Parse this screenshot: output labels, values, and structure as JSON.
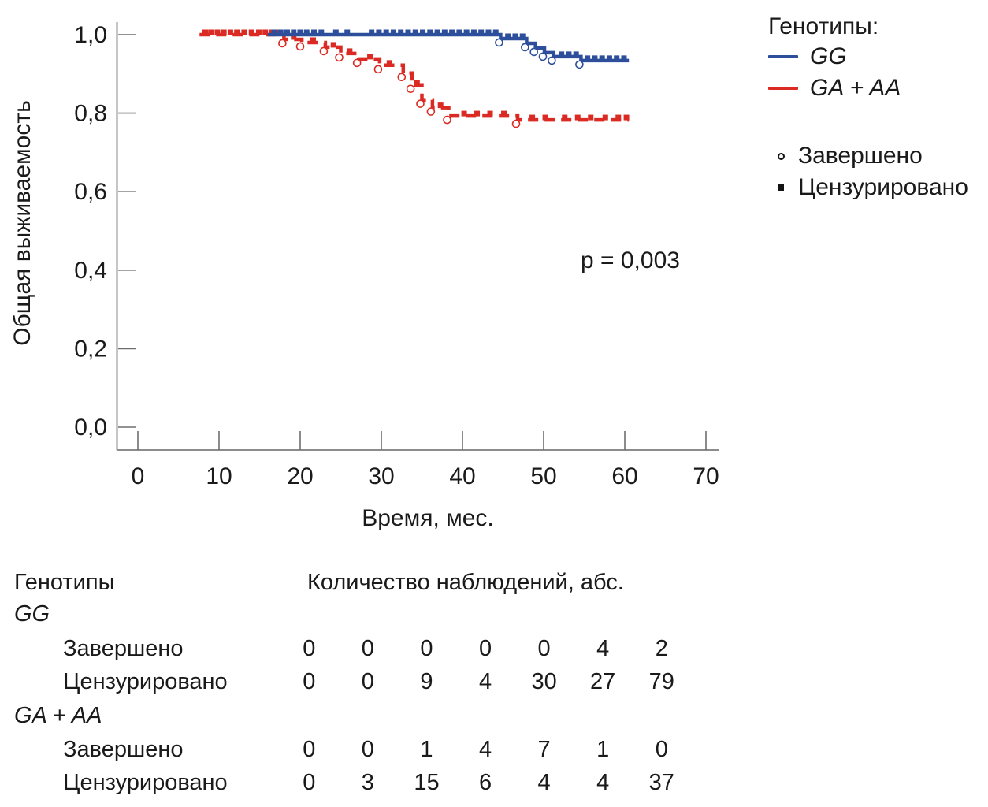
{
  "chart_data": {
    "type": "line",
    "variant": "kaplan_meier_step_survival",
    "title": "",
    "xlabel": "Время, мес.",
    "ylabel": "Общая выживаемость",
    "xlim": [
      0,
      70
    ],
    "ylim": [
      0.0,
      1.0
    ],
    "grid": false,
    "legend_position": "right-outside",
    "annotation": "p = 0,003",
    "xticks": [
      {
        "value": 0,
        "label": "0"
      },
      {
        "value": 10,
        "label": "10"
      },
      {
        "value": 20,
        "label": "20"
      },
      {
        "value": 30,
        "label": "30"
      },
      {
        "value": 40,
        "label": "40"
      },
      {
        "value": 50,
        "label": "50"
      },
      {
        "value": 60,
        "label": "60"
      },
      {
        "value": 70,
        "label": "70"
      }
    ],
    "yticks": [
      {
        "value": 0.0,
        "label": "0,0"
      },
      {
        "value": 0.2,
        "label": "0,2"
      },
      {
        "value": 0.4,
        "label": "0,4"
      },
      {
        "value": 0.6,
        "label": "0,6"
      },
      {
        "value": 0.8,
        "label": "0,8"
      },
      {
        "value": 1.0,
        "label": "1,0"
      }
    ],
    "series": [
      {
        "id": "gg",
        "name": "GG",
        "color": "#2d4e9b",
        "line_style": "solid",
        "steps": [
          [
            16.0,
            1.0
          ],
          [
            44.7,
            1.0
          ],
          [
            44.7,
            0.99
          ],
          [
            47.9,
            0.99
          ],
          [
            47.9,
            0.978
          ],
          [
            49.0,
            0.978
          ],
          [
            49.0,
            0.966
          ],
          [
            50.1,
            0.966
          ],
          [
            50.1,
            0.954
          ],
          [
            51.2,
            0.954
          ],
          [
            51.2,
            0.944
          ],
          [
            54.6,
            0.944
          ],
          [
            54.6,
            0.934
          ],
          [
            60.5,
            0.934
          ]
        ],
        "censored": [
          [
            16.8,
            1.0
          ],
          [
            17.6,
            1.0
          ],
          [
            18.4,
            1.0
          ],
          [
            19.2,
            1.0
          ],
          [
            20.0,
            1.0
          ],
          [
            20.8,
            1.0
          ],
          [
            21.7,
            1.0
          ],
          [
            22.6,
            1.0
          ],
          [
            24.4,
            1.0
          ],
          [
            25.8,
            1.0
          ],
          [
            28.8,
            1.0
          ],
          [
            29.7,
            1.0
          ],
          [
            30.6,
            1.0
          ],
          [
            31.5,
            1.0
          ],
          [
            32.4,
            1.0
          ],
          [
            33.3,
            1.0
          ],
          [
            34.2,
            1.0
          ],
          [
            35.1,
            1.0
          ],
          [
            36.0,
            1.0
          ],
          [
            36.9,
            1.0
          ],
          [
            37.8,
            1.0
          ],
          [
            38.7,
            1.0
          ],
          [
            39.6,
            1.0
          ],
          [
            40.5,
            1.0
          ],
          [
            41.4,
            1.0
          ],
          [
            42.3,
            1.0
          ],
          [
            43.2,
            1.0
          ],
          [
            44.1,
            1.0
          ],
          [
            45.6,
            0.99
          ],
          [
            46.5,
            0.99
          ],
          [
            47.4,
            0.99
          ],
          [
            52.2,
            0.944
          ],
          [
            53.1,
            0.944
          ],
          [
            54.0,
            0.944
          ],
          [
            55.4,
            0.934
          ],
          [
            56.3,
            0.934
          ],
          [
            57.2,
            0.934
          ],
          [
            58.1,
            0.934
          ],
          [
            59.0,
            0.934
          ],
          [
            59.9,
            0.934
          ]
        ],
        "events": [
          [
            44.7,
            0.99
          ],
          [
            47.9,
            0.978
          ],
          [
            49.0,
            0.966
          ],
          [
            50.1,
            0.954
          ],
          [
            51.2,
            0.944
          ],
          [
            54.6,
            0.934
          ]
        ]
      },
      {
        "id": "ga-aa",
        "name": "GA + AA",
        "color": "#da2a23",
        "line_style": "dashed",
        "steps": [
          [
            7.6,
            1.0
          ],
          [
            18.0,
            1.0
          ],
          [
            18.0,
            0.988
          ],
          [
            20.2,
            0.988
          ],
          [
            20.2,
            0.98
          ],
          [
            23.1,
            0.98
          ],
          [
            23.1,
            0.968
          ],
          [
            25.0,
            0.968
          ],
          [
            25.0,
            0.952
          ],
          [
            27.2,
            0.952
          ],
          [
            27.2,
            0.938
          ],
          [
            29.8,
            0.938
          ],
          [
            29.8,
            0.922
          ],
          [
            32.7,
            0.922
          ],
          [
            32.7,
            0.902
          ],
          [
            33.8,
            0.902
          ],
          [
            33.8,
            0.872
          ],
          [
            35.0,
            0.872
          ],
          [
            35.0,
            0.834
          ],
          [
            36.3,
            0.834
          ],
          [
            36.3,
            0.814
          ],
          [
            38.3,
            0.814
          ],
          [
            38.3,
            0.793
          ],
          [
            46.8,
            0.793
          ],
          [
            46.8,
            0.783
          ],
          [
            60.5,
            0.783
          ]
        ],
        "censored": [
          [
            8.3,
            1.0
          ],
          [
            9.0,
            1.0
          ],
          [
            9.8,
            1.0
          ],
          [
            10.6,
            1.0
          ],
          [
            11.4,
            1.0
          ],
          [
            12.2,
            1.0
          ],
          [
            13.1,
            1.0
          ],
          [
            14.0,
            1.0
          ],
          [
            14.9,
            1.0
          ],
          [
            15.7,
            1.0
          ],
          [
            16.5,
            1.0
          ],
          [
            17.2,
            1.0
          ],
          [
            19.2,
            0.988
          ],
          [
            21.6,
            0.98
          ],
          [
            24.1,
            0.968
          ],
          [
            26.1,
            0.952
          ],
          [
            28.6,
            0.938
          ],
          [
            31.0,
            0.922
          ],
          [
            34.4,
            0.872
          ],
          [
            37.3,
            0.814
          ],
          [
            40.2,
            0.793
          ],
          [
            41.8,
            0.793
          ],
          [
            43.4,
            0.793
          ],
          [
            45.1,
            0.793
          ],
          [
            48.6,
            0.783
          ],
          [
            50.2,
            0.783
          ],
          [
            52.6,
            0.783
          ],
          [
            54.2,
            0.783
          ],
          [
            55.8,
            0.783
          ],
          [
            57.6,
            0.783
          ],
          [
            59.2,
            0.783
          ],
          [
            60.2,
            0.783
          ]
        ],
        "events": [
          [
            18.0,
            0.988
          ],
          [
            20.2,
            0.98
          ],
          [
            23.1,
            0.968
          ],
          [
            25.0,
            0.952
          ],
          [
            27.2,
            0.938
          ],
          [
            29.8,
            0.922
          ],
          [
            32.7,
            0.902
          ],
          [
            33.8,
            0.872
          ],
          [
            35.0,
            0.834
          ],
          [
            36.3,
            0.814
          ],
          [
            38.3,
            0.793
          ],
          [
            46.8,
            0.783
          ]
        ]
      }
    ]
  },
  "legend": {
    "title": "Генотипы:",
    "marker_items": [
      {
        "shape": "open-circle",
        "label": "Завершено"
      },
      {
        "shape": "filled-square",
        "label": "Цензурировано"
      }
    ]
  },
  "table": {
    "header": {
      "genotypes": "Генотипы",
      "counts": "Количество наблюдений, абс."
    },
    "groups": [
      {
        "name": "GG",
        "rows": [
          {
            "label": "Завершено",
            "values": [
              0,
              0,
              0,
              0,
              0,
              4,
              2
            ]
          },
          {
            "label": "Цензурировано",
            "values": [
              0,
              0,
              9,
              4,
              30,
              27,
              79
            ]
          }
        ]
      },
      {
        "name": "GA + AA",
        "rows": [
          {
            "label": "Завершено",
            "values": [
              0,
              0,
              1,
              4,
              7,
              1,
              0
            ]
          },
          {
            "label": "Цензурировано",
            "values": [
              0,
              3,
              15,
              6,
              4,
              4,
              37
            ]
          }
        ]
      }
    ]
  }
}
